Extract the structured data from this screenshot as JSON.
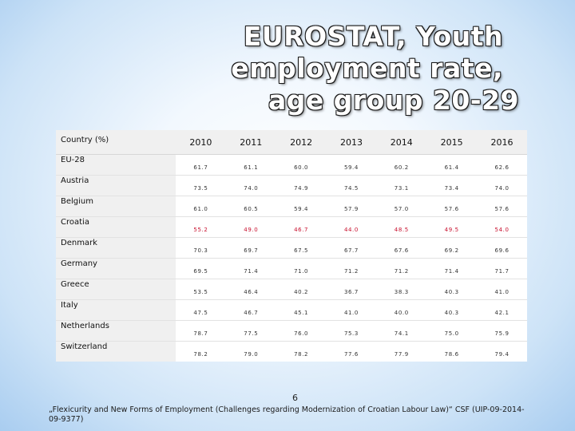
{
  "title": {
    "line1": "EUROSTAT, Youth employment rate,",
    "line2": "age group 20-29"
  },
  "table": {
    "header": {
      "country": "Country (%)",
      "years": [
        "2010",
        "2011",
        "2012",
        "2013",
        "2014",
        "2015",
        "2016"
      ]
    },
    "rows": [
      {
        "country": "EU-28",
        "values": [
          "61.7",
          "61.1",
          "60.0",
          "59.4",
          "60.2",
          "61.4",
          "62.6"
        ],
        "highlight": false
      },
      {
        "country": "Austria",
        "values": [
          "73.5",
          "74.0",
          "74.9",
          "74.5",
          "73.1",
          "73.4",
          "74.0"
        ],
        "highlight": false
      },
      {
        "country": "Belgium",
        "values": [
          "61.0",
          "60.5",
          "59.4",
          "57.9",
          "57.0",
          "57.6",
          "57.6"
        ],
        "highlight": false
      },
      {
        "country": "Croatia",
        "values": [
          "55.2",
          "49.0",
          "46.7",
          "44.0",
          "48.5",
          "49.5",
          "54.0"
        ],
        "highlight": true
      },
      {
        "country": "Denmark",
        "values": [
          "70.3",
          "69.7",
          "67.5",
          "67.7",
          "67.6",
          "69.2",
          "69.6"
        ],
        "highlight": false
      },
      {
        "country": "Germany",
        "values": [
          "69.5",
          "71.4",
          "71.0",
          "71.2",
          "71.2",
          "71.4",
          "71.7"
        ],
        "highlight": false
      },
      {
        "country": "Greece",
        "values": [
          "53.5",
          "46.4",
          "40.2",
          "36.7",
          "38.3",
          "40.3",
          "41.0"
        ],
        "highlight": false
      },
      {
        "country": "Italy",
        "values": [
          "47.5",
          "46.7",
          "45.1",
          "41.0",
          "40.0",
          "40.3",
          "42.1"
        ],
        "highlight": false
      },
      {
        "country": "Netherlands",
        "values": [
          "78.7",
          "77.5",
          "76.0",
          "75.3",
          "74.1",
          "75.0",
          "75.9"
        ],
        "highlight": false
      },
      {
        "country": "Switzerland",
        "values": [
          "78.2",
          "79.0",
          "78.2",
          "77.6",
          "77.9",
          "78.6",
          "79.4"
        ],
        "highlight": false
      }
    ]
  },
  "page_number": "6",
  "footnote": "„Flexicurity and New Forms of Employment (Challenges regarding Modernization of Croatian Labour Law)“ CSF (UIP-09-2014-09-9377)",
  "colors": {
    "highlight_red": "#c8102e",
    "background_blue": "#a9cdf0"
  }
}
